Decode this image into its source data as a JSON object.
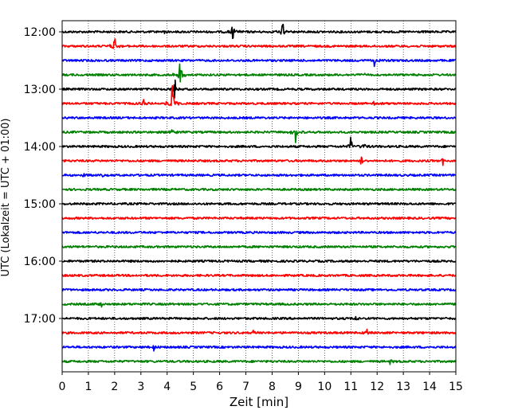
{
  "chart_data": {
    "type": "line",
    "xlabel": "Zeit  [min]",
    "ylabel": "UTC (Lokalzeit = UTC + 01:00)",
    "xlim": [
      0,
      15
    ],
    "x_ticks": [
      "0",
      "1",
      "2",
      "3",
      "4",
      "5",
      "6",
      "7",
      "8",
      "9",
      "10",
      "11",
      "12",
      "13",
      "14",
      "15"
    ],
    "y_ticks": [
      "12:00",
      "13:00",
      "14:00",
      "15:00",
      "16:00",
      "17:00"
    ],
    "grid": "vertical-dotted",
    "colors": [
      "#000000",
      "#ff0000",
      "#0000ff",
      "#008000"
    ],
    "traces": [
      {
        "start": "12:00",
        "color": "#000000",
        "events": [
          {
            "t": 6.5,
            "amp": 1.0
          },
          {
            "t": 8.4,
            "amp": 1.1
          },
          {
            "t": 3.9,
            "amp": 0.4
          }
        ]
      },
      {
        "start": "12:15",
        "color": "#ff0000",
        "events": [
          {
            "t": 2.0,
            "amp": 1.0
          }
        ]
      },
      {
        "start": "12:30",
        "color": "#0000ff",
        "events": [
          {
            "t": 11.9,
            "amp": 0.5
          }
        ]
      },
      {
        "start": "12:45",
        "color": "#008000",
        "events": [
          {
            "t": 4.5,
            "amp": 2.0
          },
          {
            "t": 11.5,
            "amp": 0.4
          }
        ]
      },
      {
        "start": "13:00",
        "color": "#000000",
        "events": [
          {
            "t": 4.3,
            "amp": 0.9
          }
        ]
      },
      {
        "start": "13:15",
        "color": "#ff0000",
        "events": [
          {
            "t": 4.2,
            "amp": 2.0
          },
          {
            "t": 3.1,
            "amp": 0.4
          },
          {
            "t": 11.9,
            "amp": 0.4
          }
        ]
      },
      {
        "start": "13:30",
        "color": "#0000ff",
        "events": []
      },
      {
        "start": "13:45",
        "color": "#008000",
        "events": [
          {
            "t": 8.9,
            "amp": 1.1
          },
          {
            "t": 4.2,
            "amp": 0.4
          }
        ]
      },
      {
        "start": "14:00",
        "color": "#000000",
        "events": [
          {
            "t": 11.0,
            "amp": 1.0
          },
          {
            "t": 11.5,
            "amp": 0.5
          }
        ]
      },
      {
        "start": "14:15",
        "color": "#ff0000",
        "events": [
          {
            "t": 11.4,
            "amp": 0.9
          },
          {
            "t": 14.5,
            "amp": 0.5
          }
        ]
      },
      {
        "start": "14:30",
        "color": "#0000ff",
        "events": [
          {
            "t": 1.6,
            "amp": 0.5
          },
          {
            "t": 0.8,
            "amp": 0.3
          }
        ]
      },
      {
        "start": "14:45",
        "color": "#008000",
        "events": []
      },
      {
        "start": "15:00",
        "color": "#000000",
        "events": []
      },
      {
        "start": "15:15",
        "color": "#ff0000",
        "events": []
      },
      {
        "start": "15:30",
        "color": "#0000ff",
        "events": []
      },
      {
        "start": "15:45",
        "color": "#008000",
        "events": []
      },
      {
        "start": "16:00",
        "color": "#000000",
        "events": []
      },
      {
        "start": "16:15",
        "color": "#ff0000",
        "events": []
      },
      {
        "start": "16:30",
        "color": "#0000ff",
        "events": []
      },
      {
        "start": "16:45",
        "color": "#008000",
        "events": [
          {
            "t": 1.5,
            "amp": 0.3
          }
        ]
      },
      {
        "start": "17:00",
        "color": "#000000",
        "events": [
          {
            "t": 11.2,
            "amp": 0.4
          }
        ]
      },
      {
        "start": "17:15",
        "color": "#ff0000",
        "events": [
          {
            "t": 7.3,
            "amp": 0.4
          },
          {
            "t": 11.6,
            "amp": 0.4
          }
        ]
      },
      {
        "start": "17:30",
        "color": "#0000ff",
        "events": [
          {
            "t": 3.5,
            "amp": 0.4
          }
        ]
      },
      {
        "start": "17:45",
        "color": "#008000",
        "events": [
          {
            "t": 12.5,
            "amp": 0.3
          }
        ]
      }
    ]
  }
}
